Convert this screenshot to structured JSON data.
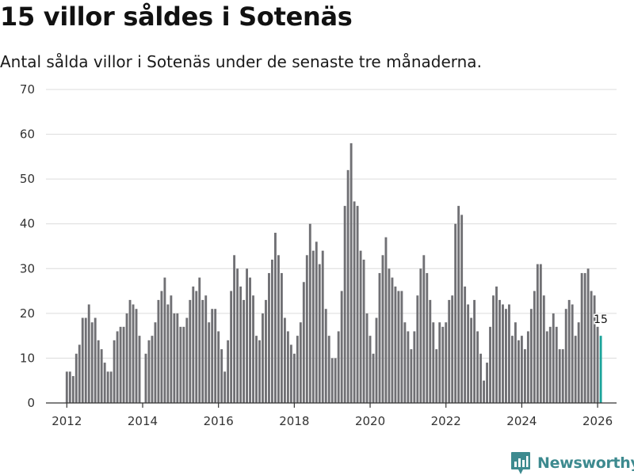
{
  "header": {
    "title": "15 villor såldes i Sotenäs",
    "subtitle": "Antal sålda villor i Sotenäs under de senaste tre månaderna."
  },
  "brand": {
    "name": "Newsworthy"
  },
  "colors": {
    "bar": "#707074",
    "highlight": "#1aa39a",
    "grid": "#dcdcdc",
    "axis": "#333333",
    "brand": "#3d8a8f"
  },
  "chart_data": {
    "type": "bar",
    "title": "15 villor såldes i Sotenäs",
    "subtitle": "Antal sålda villor i Sotenäs under de senaste tre månaderna.",
    "xlabel": "",
    "ylabel": "",
    "ylim": [
      0,
      70
    ],
    "yticks": [
      "0",
      "10",
      "20",
      "30",
      "40",
      "50",
      "60",
      "70"
    ],
    "xlim": [
      2011.45,
      2026.5
    ],
    "xticks": [
      "2012",
      "2014",
      "2016",
      "2018",
      "2020",
      "2022",
      "2024",
      "2026"
    ],
    "x_start": 2012.0,
    "x_step": 0.0833333,
    "values": [
      7,
      7,
      6,
      11,
      13,
      19,
      19,
      22,
      18,
      19,
      14,
      12,
      9,
      7,
      7,
      14,
      16,
      17,
      17,
      20,
      23,
      22,
      21,
      15,
      0,
      11,
      14,
      15,
      18,
      23,
      25,
      28,
      22,
      24,
      20,
      20,
      17,
      17,
      19,
      23,
      26,
      25,
      28,
      23,
      24,
      18,
      21,
      21,
      16,
      12,
      7,
      14,
      25,
      33,
      30,
      26,
      23,
      30,
      28,
      24,
      15,
      14,
      20,
      23,
      29,
      32,
      38,
      33,
      29,
      19,
      16,
      13,
      11,
      15,
      18,
      27,
      33,
      40,
      34,
      36,
      31,
      34,
      21,
      15,
      10,
      10,
      16,
      25,
      44,
      52,
      58,
      45,
      44,
      34,
      32,
      20,
      15,
      11,
      19,
      29,
      33,
      37,
      30,
      28,
      26,
      25,
      25,
      18,
      16,
      12,
      16,
      24,
      30,
      33,
      29,
      23,
      18,
      12,
      18,
      17,
      18,
      23,
      24,
      40,
      44,
      42,
      26,
      22,
      19,
      23,
      16,
      11,
      5,
      9,
      17,
      24,
      26,
      23,
      22,
      21,
      22,
      15,
      18,
      14,
      15,
      12,
      16,
      21,
      25,
      31,
      31,
      24,
      16,
      17,
      20,
      17,
      12,
      12,
      21,
      23,
      22,
      15,
      18,
      29,
      29,
      30,
      25,
      24,
      17,
      15
    ],
    "highlight_last": true,
    "annotations": [
      {
        "label": "15",
        "target": "last_bar"
      }
    ]
  }
}
